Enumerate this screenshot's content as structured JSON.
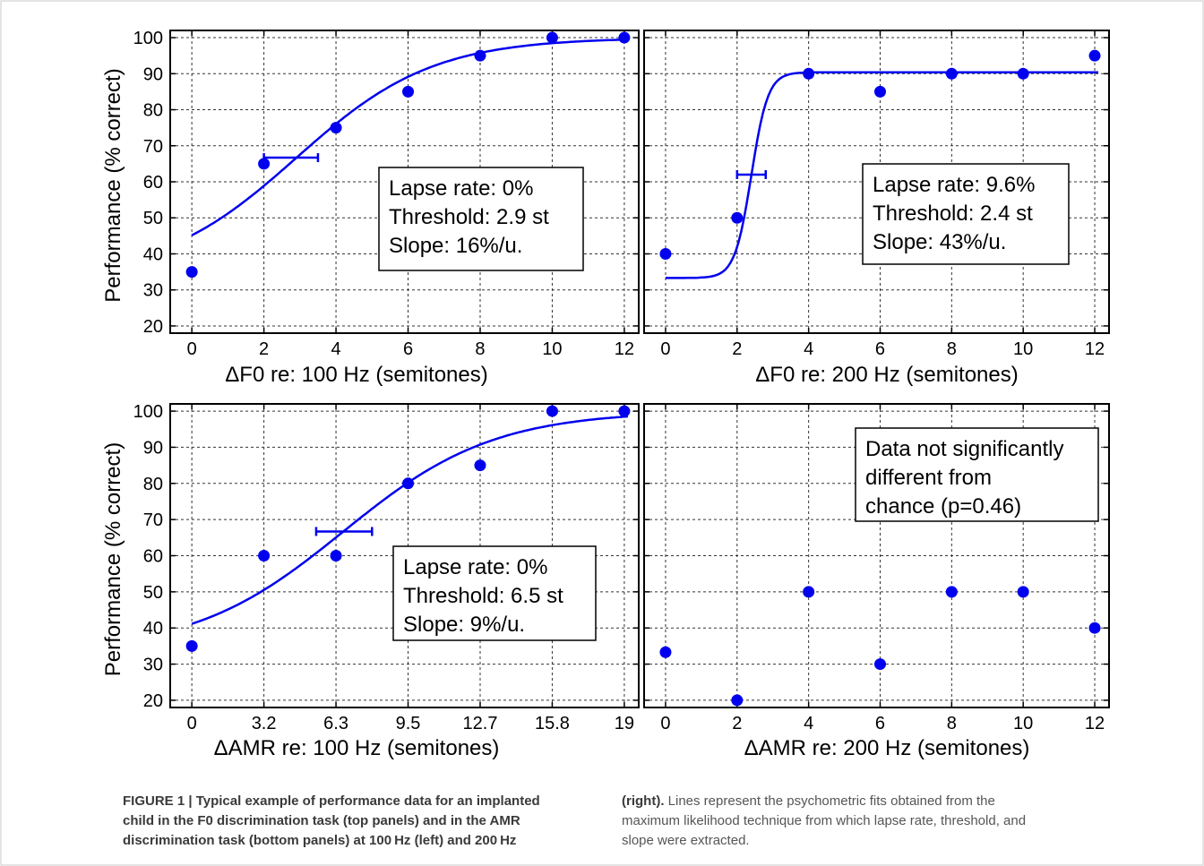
{
  "colors": {
    "series": "#0000ee",
    "frame": "#000000",
    "grid": "#333333",
    "box_border": "#000000"
  },
  "ylabel": "Performance (% correct)",
  "yticks": [
    "100",
    "90",
    "80",
    "70",
    "60",
    "50",
    "40",
    "30",
    "20"
  ],
  "chart_data": [
    {
      "type": "scatter",
      "panel": "top-left",
      "xlabel": "ΔF0 re: 100 Hz (semitones)",
      "ylabel": "Performance (% correct)",
      "xlim": [
        -0.6,
        12.4
      ],
      "ylim": [
        18,
        102
      ],
      "xticks": [
        "0",
        "2",
        "4",
        "6",
        "8",
        "10",
        "12"
      ],
      "points": {
        "x": [
          0,
          2,
          4,
          6,
          8,
          10,
          12
        ],
        "y": [
          35,
          65,
          75,
          85,
          95,
          100,
          100
        ]
      },
      "fit": {
        "lapse": 0,
        "threshold": 2.9,
        "slope_k": 0.33,
        "guess": 33.3
      },
      "threshold_bar": {
        "x": [
          2.0,
          3.5
        ],
        "y": 66.7
      },
      "box_lines": [
        "Lapse rate: 0%",
        "Threshold: 2.9 st",
        "Slope: 16%/u."
      ],
      "grid": true
    },
    {
      "type": "scatter",
      "panel": "top-right",
      "xlabel": "ΔF0 re: 200 Hz (semitones)",
      "ylabel": "Performance (% correct)",
      "xlim": [
        -0.6,
        12.4
      ],
      "ylim": [
        18,
        102
      ],
      "xticks": [
        "0",
        "2",
        "4",
        "6",
        "8",
        "10",
        "12"
      ],
      "points": {
        "x": [
          0,
          2,
          4,
          6,
          8,
          10,
          12
        ],
        "y": [
          40,
          50,
          90,
          85,
          90,
          90,
          95
        ]
      },
      "fit": {
        "lapse": 9.6,
        "threshold": 2.4,
        "slope_k": 2.7,
        "guess": 33.3
      },
      "threshold_bar": {
        "x": [
          2.0,
          2.8
        ],
        "y": 62
      },
      "box_lines": [
        "Lapse rate: 9.6%",
        "Threshold: 2.4 st",
        "Slope: 43%/u."
      ],
      "grid": true
    },
    {
      "type": "scatter",
      "panel": "bottom-left",
      "xlabel": "ΔAMR re: 100 Hz (semitones)",
      "ylabel": "Performance (% correct)",
      "xlim": [
        -0.6,
        12.4
      ],
      "ylim": [
        18,
        102
      ],
      "xticks": [
        "0",
        "3.2",
        "6.3",
        "9.5",
        "12.7",
        "15.8",
        "19"
      ],
      "tick_positions": [
        0,
        2,
        4,
        6,
        8,
        10,
        12
      ],
      "points": {
        "x": [
          0,
          2,
          4,
          6,
          8,
          10,
          12
        ],
        "y": [
          35,
          60,
          60,
          80,
          85,
          100,
          100
        ]
      },
      "fit": {
        "lapse": 0,
        "threshold": 4.2,
        "slope_k": 0.3,
        "guess": 33.3
      },
      "threshold_bar": {
        "x": [
          3.45,
          5.0
        ],
        "y": 66.7
      },
      "box_lines": [
        "Lapse rate: 0%",
        "Threshold: 6.5 st",
        "Slope: 9%/u."
      ],
      "grid": true
    },
    {
      "type": "scatter",
      "panel": "bottom-right",
      "xlabel": "ΔAMR re: 200 Hz (semitones)",
      "ylabel": "Performance (% correct)",
      "xlim": [
        -0.6,
        12.4
      ],
      "ylim": [
        18,
        102
      ],
      "xticks": [
        "0",
        "2",
        "4",
        "6",
        "8",
        "10",
        "12"
      ],
      "points": {
        "x": [
          0,
          2,
          4,
          6,
          8,
          10,
          12
        ],
        "y": [
          33.3,
          20,
          50,
          30,
          50,
          50,
          40
        ]
      },
      "fit": null,
      "threshold_bar": null,
      "box_lines": [
        "Data not significantly",
        "different from",
        "chance (p=0.46)"
      ],
      "grid": true
    }
  ],
  "caption": {
    "left_label": "FIGURE 1 | Typical example of performance data for an implanted",
    "left_lines": [
      "child in the F0 discrimination task (top panels) and in the AMR",
      "discrimination task (bottom panels) at 100 Hz (left) and 200 Hz"
    ],
    "right_bold": "(right).",
    "right_first": " Lines represent the psychometric fits obtained from the",
    "right_lines": [
      "maximum likelihood technique from which lapse rate, threshold, and",
      "slope were extracted."
    ]
  }
}
